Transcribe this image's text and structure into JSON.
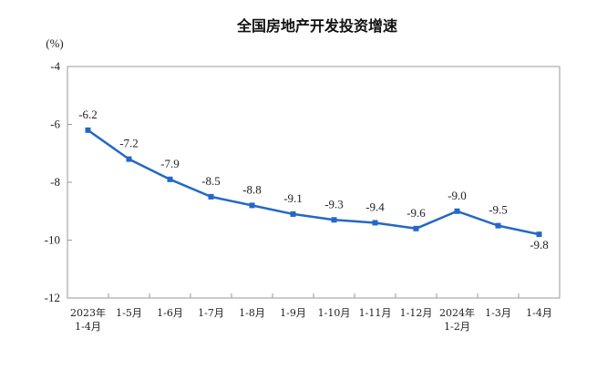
{
  "chart_data": {
    "type": "line",
    "title": "全国房地产开发投资增速",
    "unit_label": "(%)",
    "ylabel": "",
    "xlabel": "",
    "ylim": [
      -12,
      -4
    ],
    "yticks": [
      "-4",
      "-6",
      "-8",
      "-10",
      "-12"
    ],
    "ytick_values": [
      -4,
      -6,
      -8,
      -10,
      -12
    ],
    "categories": [
      [
        "2023年",
        "1-4月"
      ],
      [
        "1-5月"
      ],
      [
        "1-6月"
      ],
      [
        "1-7月"
      ],
      [
        "1-8月"
      ],
      [
        "1-9月"
      ],
      [
        "1-10月"
      ],
      [
        "1-11月"
      ],
      [
        "1-12月"
      ],
      [
        "2024年",
        "1-2月"
      ],
      [
        "1-3月"
      ],
      [
        "1-4月"
      ]
    ],
    "series": [
      {
        "name": "全国房地产开发投资增速",
        "color": "#2468c4",
        "values": [
          -6.2,
          -7.2,
          -7.9,
          -8.5,
          -8.8,
          -9.1,
          -9.3,
          -9.4,
          -9.6,
          -9.0,
          -9.5,
          -9.8
        ],
        "labels": [
          "-6.2",
          "-7.2",
          "-7.9",
          "-8.5",
          "-8.8",
          "-9.1",
          "-9.3",
          "-9.4",
          "-9.6",
          "-9.0",
          "-9.5",
          "-9.8"
        ]
      }
    ],
    "grid": false,
    "legend": "none"
  }
}
